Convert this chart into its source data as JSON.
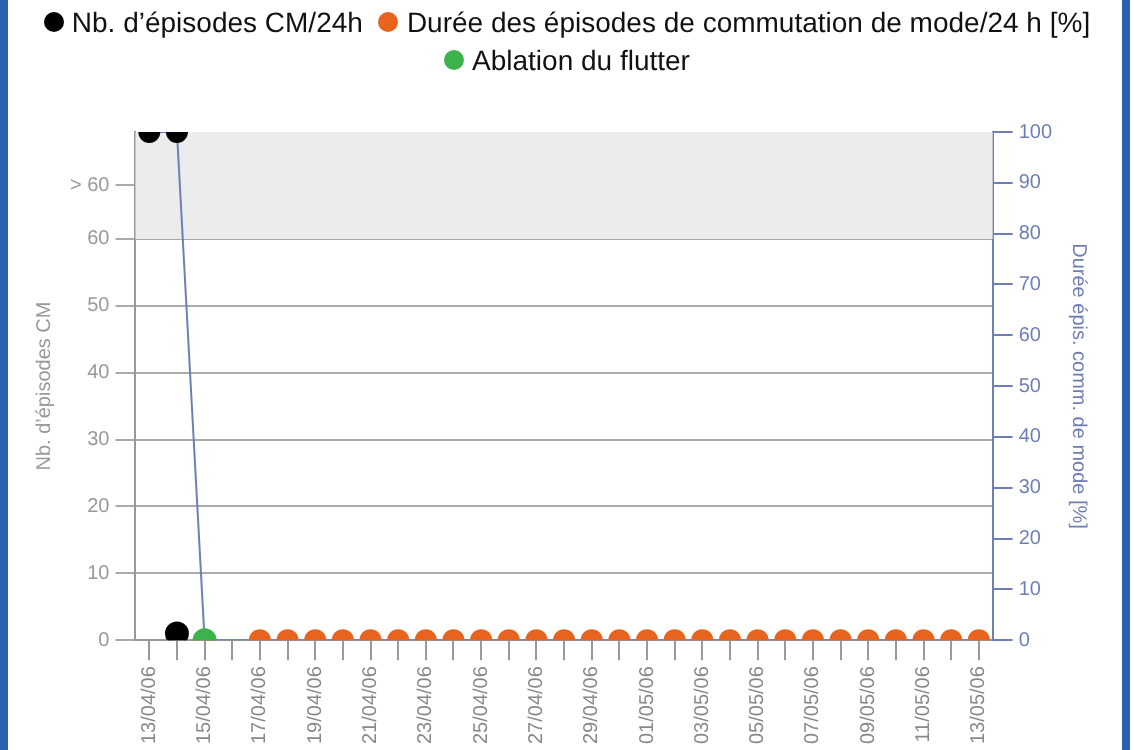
{
  "chart_data": {
    "type": "line",
    "categories": [
      "13/04/06",
      null,
      "15/04/06",
      null,
      "17/04/06",
      null,
      "19/04/06",
      null,
      "21/04/06",
      null,
      "23/04/06",
      null,
      "25/04/06",
      null,
      "27/04/06",
      null,
      "29/04/06",
      null,
      "01/05/06",
      null,
      "03/05/06",
      null,
      "05/05/06",
      null,
      "07/05/06",
      null,
      "09/05/06",
      null,
      "11/05/06",
      null,
      "13/05/06"
    ],
    "series": [
      {
        "name": "Nb. d’épisodes CM/24h",
        "type": "scatter",
        "axis": "y",
        "color": "#000000",
        "values": [
          null,
          1,
          null,
          null,
          null,
          null,
          null,
          null,
          null,
          null,
          null,
          null,
          null,
          null,
          null,
          null,
          null,
          null,
          null,
          null,
          null,
          null,
          null,
          null,
          null,
          null,
          null,
          null,
          null,
          null,
          null
        ]
      },
      {
        "name": "Durée des épisodes de commutation de mode/24 h [%]",
        "type": "line",
        "axis": "y2",
        "color": "#e8641e",
        "colors": [
          "#000000",
          "#000000",
          "#e8641e",
          null,
          "#e8641e",
          "#e8641e",
          "#e8641e",
          "#e8641e",
          "#e8641e",
          "#e8641e",
          "#e8641e",
          "#e8641e",
          "#e8641e",
          "#e8641e",
          "#e8641e",
          "#e8641e",
          "#e8641e",
          "#e8641e",
          "#e8641e",
          "#e8641e",
          "#e8641e",
          "#e8641e",
          "#e8641e",
          "#e8641e",
          "#e8641e",
          "#e8641e",
          "#e8641e",
          "#e8641e",
          "#e8641e",
          "#e8641e",
          "#e8641e"
        ],
        "values": [
          100,
          100,
          0,
          null,
          0,
          0,
          0,
          0,
          0,
          0,
          0,
          0,
          0,
          0,
          0,
          0,
          0,
          0,
          0,
          0,
          0,
          0,
          0,
          0,
          0,
          0,
          0,
          0,
          0,
          0,
          0
        ]
      },
      {
        "name": "Ablation du flutter",
        "type": "scatter",
        "axis": "y",
        "color": "#3cb34a",
        "values": [
          null,
          null,
          0,
          null,
          null,
          null,
          null,
          null,
          null,
          null,
          null,
          null,
          null,
          null,
          null,
          null,
          null,
          null,
          null,
          null,
          null,
          null,
          null,
          null,
          null,
          null,
          null,
          null,
          null,
          null,
          null
        ]
      }
    ],
    "ylabel": "Nb. d’épisodes CM",
    "y2label": "Durée épis. comm. de mode [%]",
    "ylim": [
      0,
      76
    ],
    "yticks": [
      0,
      10,
      20,
      30,
      40,
      50,
      60,
      {
        "value": 68,
        "label": "> 60"
      }
    ],
    "y2lim": [
      0,
      100
    ],
    "y2ticks": [
      0,
      10,
      20,
      30,
      40,
      50,
      60,
      70,
      80,
      90,
      100
    ],
    "bands": [
      {
        "axis": "y",
        "from": 60,
        "to": 76,
        "color": "#ececec"
      }
    ],
    "grid": "y",
    "legend": "top",
    "marker": "circle"
  }
}
